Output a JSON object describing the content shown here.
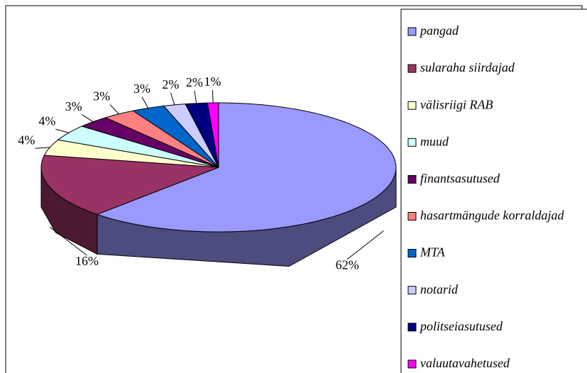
{
  "chart_data": {
    "type": "pie",
    "categories": [
      "pangad",
      "sularaha siirdajad",
      "välisriigi RAB",
      "muud",
      "finantsasutused",
      "hasartmängude korraldajad",
      "MTA",
      "notarid",
      "politseiasutused",
      "valuutavahetused"
    ],
    "values": [
      62,
      16,
      4,
      4,
      3,
      3,
      3,
      2,
      2,
      1
    ],
    "value_labels": [
      "62%",
      "16%",
      "4%",
      "4%",
      "3%",
      "3%",
      "3%",
      "2%",
      "2%",
      "1%"
    ],
    "colors": [
      "#9999ff",
      "#993366",
      "#ffffcc",
      "#ccffff",
      "#660066",
      "#ff8080",
      "#0066cc",
      "#ccccff",
      "#000080",
      "#ff00ff"
    ],
    "legend": "right"
  }
}
